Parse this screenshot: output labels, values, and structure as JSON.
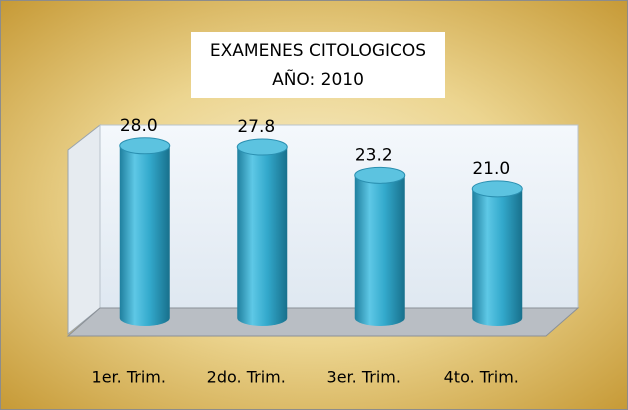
{
  "chart_data": {
    "type": "bar",
    "title": "EXAMENES CITOLOGICOS",
    "subtitle": "AÑO: 2010",
    "categories": [
      "1er. Trim.",
      "2do. Trim.",
      "3er. Trim.",
      "4to. Trim."
    ],
    "values": [
      28.0,
      27.8,
      23.2,
      21.0
    ],
    "value_labels": [
      "28.0",
      "27.8",
      "23.2",
      "21.0"
    ],
    "color": "#33a9cc"
  }
}
